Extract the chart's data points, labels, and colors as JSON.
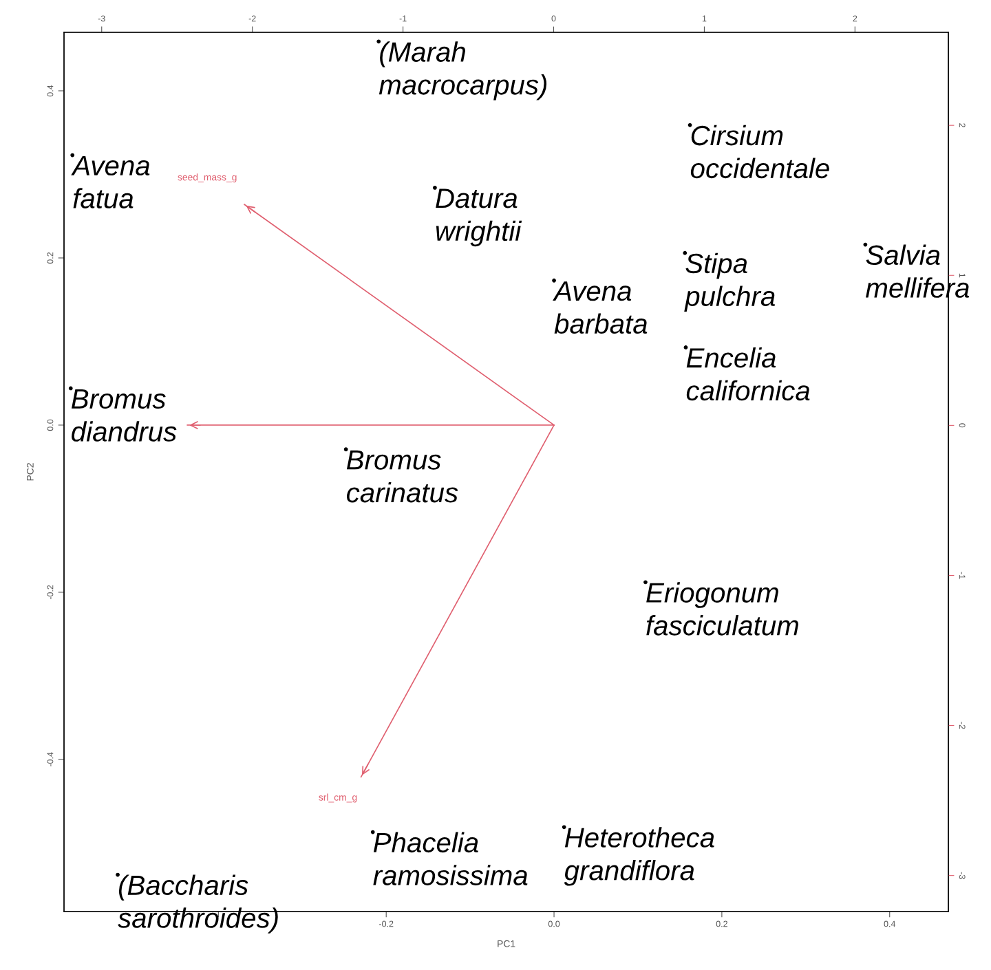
{
  "chart_data": {
    "type": "line",
    "xlabel": "PC1",
    "ylabel": "PC2",
    "xlim": [
      -0.584,
      0.47
    ],
    "ylim": [
      -0.582,
      0.47
    ],
    "xticks": [
      {
        "value": -0.4,
        "label": null
      },
      -0.2,
      {
        "value": 0.0,
        "label": "0.0"
      },
      0.2,
      0.4
    ],
    "yticks": [
      -0.4,
      -0.2,
      {
        "value": 0.0,
        "label": "0.0"
      },
      0.2,
      0.4
    ],
    "x2lim": [
      -3.25,
      2.62
    ],
    "x2ticks": [
      -3,
      -2,
      -1,
      0,
      1,
      2
    ],
    "y2lim": [
      -3.24,
      2.62
    ],
    "y2ticks": [
      -3,
      -2,
      -1,
      0,
      1,
      2
    ],
    "grid": false,
    "marker": "none",
    "line_style": "solid",
    "series": [
      {
        "name": "seed_mass_g",
        "color": "#e06070",
        "x": [
          0,
          -0.369
        ],
        "values": [
          0,
          0.264
        ]
      },
      {
        "color": "#e06070",
        "x": [
          0,
          -0.437
        ],
        "values": [
          0,
          0.0
        ]
      },
      {
        "name": "srl_cm_g",
        "color": "#e06070",
        "x": [
          0,
          -0.23
        ],
        "values": [
          0,
          -0.421
        ]
      },
      {
        "type": "scatter",
        "color": "#000000",
        "marker": "circle",
        "x": [
          -0.574,
          -0.209,
          -0.142,
          0.162,
          0.156,
          0.371,
          0.0,
          0.157,
          -0.576,
          -0.248,
          0.109,
          -0.216,
          0.012,
          -0.52
        ],
        "values": [
          0.323,
          0.459,
          0.284,
          0.359,
          0.206,
          0.216,
          0.173,
          0.093,
          0.044,
          -0.029,
          -0.188,
          -0.487,
          -0.481,
          -0.538
        ]
      }
    ],
    "annotations": [
      {
        "text": "Avena\nfatua",
        "x": -0.574,
        "y": 0.323
      },
      {
        "text": "(Marah\nmacrocarpus)",
        "x": -0.209,
        "y": 0.459
      },
      {
        "text": "Datura\nwrightii",
        "x": -0.142,
        "y": 0.284
      },
      {
        "text": "Cirsium\noccidentale",
        "x": 0.162,
        "y": 0.359
      },
      {
        "text": "Stipa\npulchra",
        "x": 0.156,
        "y": 0.206
      },
      {
        "text": "Salvia\nmellifera",
        "x": 0.371,
        "y": 0.216
      },
      {
        "text": "Avena\nbarbata",
        "x": 0.0,
        "y": 0.173
      },
      {
        "text": "Encelia\ncalifornica",
        "x": 0.157,
        "y": 0.093
      },
      {
        "text": "Bromus\ndiandrus",
        "x": -0.576,
        "y": 0.044
      },
      {
        "text": "Bromus\ncarinatus",
        "x": -0.248,
        "y": -0.029
      },
      {
        "text": "Eriogonum\nfasciculatum",
        "x": 0.109,
        "y": -0.188
      },
      {
        "text": "Phacelia\nramosissima",
        "x": -0.216,
        "y": -0.487
      },
      {
        "text": "Heterotheca\ngrandiflora",
        "x": 0.012,
        "y": -0.481
      },
      {
        "text": "(Baccharis\nsarothroides)",
        "x": -0.52,
        "y": -0.538
      }
    ]
  }
}
